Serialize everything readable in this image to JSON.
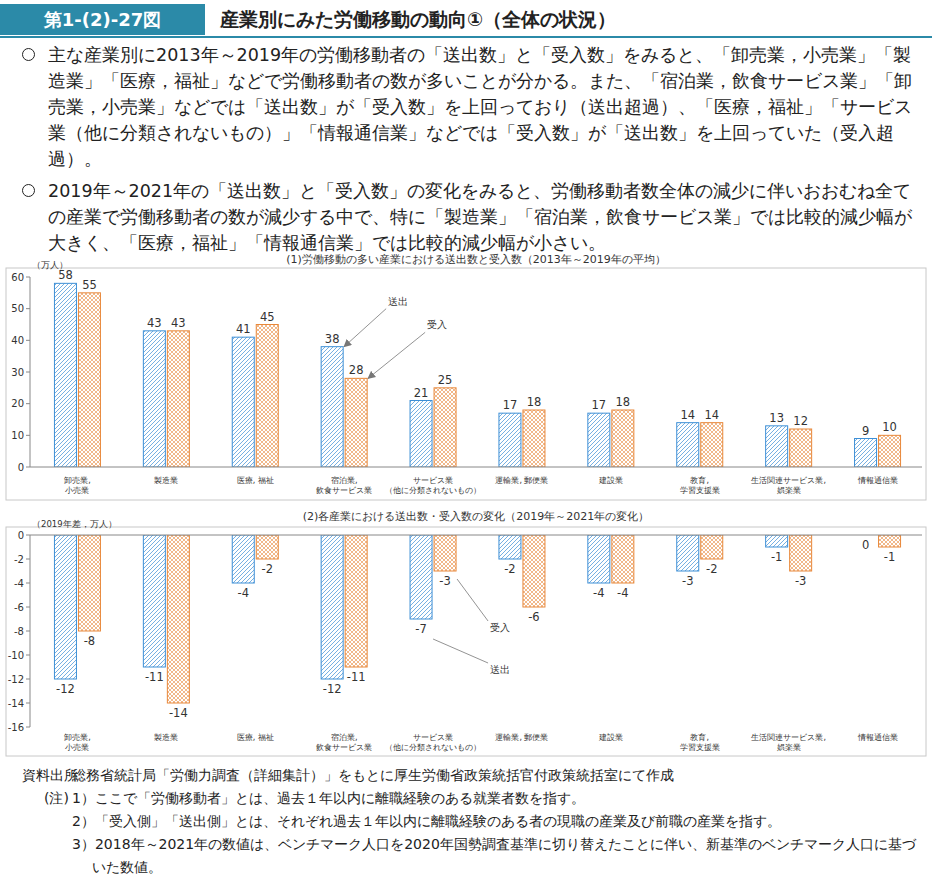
{
  "header": {
    "figure_number": "第1-(2)-27図",
    "title": "産業別にみた労働移動の動向①（全体の状況）"
  },
  "summary": [
    "主な産業別に2013年～2019年の労働移動者の「送出数」と「受入数」をみると、「卸売業，小売業」「製造業」「医療，福祉」などで労働移動者の数が多いことが分かる。また、「宿泊業，飲食サービス業」「卸売業，小売業」などでは「送出数」が「受入数」を上回っており（送出超過）、「医療，福祉」「サービス業（他に分類されないもの）」「情報通信業」などでは「受入数」が「送出数」を上回っていた（受入超過）。",
    "2019年～2021年の「送出数」と「受入数」の変化をみると、労働移動者数全体の減少に伴いおおむね全ての産業で労働移動者の数が減少する中で、特に「製造業」「宿泊業，飲食サービス業」では比較的減少幅が大きく、「医療，福祉」「情報通信業」では比較的減少幅が小さい。"
  ],
  "chart_data": [
    {
      "type": "bar",
      "title": "(1)労働移動の多い産業における送出数と受入数（2013年～2019年の平均）",
      "y_label": "（万人）",
      "categories": [
        "卸売業,\n小売業",
        "製造業",
        "医療, 福祉",
        "宿泊業,\n飲食サービス業",
        "サービス業\n（他に分類されないもの）",
        "運輸業, 郵便業",
        "建設業",
        "教育,\n学習支援業",
        "生活関連サービス業,\n娯楽業",
        "情報通信業"
      ],
      "series": [
        {
          "name": "送出",
          "color": "#3d8fd6",
          "values": [
            58,
            43,
            41,
            38,
            21,
            17,
            17,
            14,
            13,
            9
          ]
        },
        {
          "name": "受入",
          "color": "#e8883a",
          "values": [
            55,
            43,
            45,
            28,
            25,
            18,
            18,
            14,
            12,
            10
          ]
        }
      ],
      "ylim": [
        0,
        60
      ],
      "yticks": [
        0,
        10,
        20,
        30,
        40,
        50,
        60
      ],
      "grid": false,
      "data_labels": true
    },
    {
      "type": "bar",
      "title": "(2)各産業における送出数・受入数の変化（2019年～2021年の変化）",
      "y_label": "（2019年差，万人）",
      "categories": [
        "卸売業,\n小売業",
        "製造業",
        "医療, 福祉",
        "宿泊業,\n飲食サービス業",
        "サービス業\n（他に分類されないもの）",
        "運輸業, 郵便業",
        "建設業",
        "教育,\n学習支援業",
        "生活関連サービス業,\n娯楽業",
        "情報通信業"
      ],
      "series": [
        {
          "name": "送出",
          "color": "#3d8fd6",
          "values": [
            -12,
            -11,
            -4,
            -12,
            -7,
            -2,
            -4,
            -3,
            -1,
            0
          ]
        },
        {
          "name": "受入",
          "color": "#e8883a",
          "values": [
            -8,
            -14,
            -2,
            -11,
            -3,
            -6,
            -4,
            -2,
            -3,
            -1
          ]
        }
      ],
      "ylim": [
        -16,
        0
      ],
      "yticks": [
        0,
        -2,
        -4,
        -6,
        -8,
        -10,
        -12,
        -14,
        -16
      ],
      "grid": false,
      "data_labels": true
    }
  ],
  "source": {
    "label": "資料出所",
    "text": "総務省統計局「労働力調査（詳細集計）」をもとに厚生労働省政策統括官付政策統括室にて作成",
    "notes_label": "(注)",
    "notes": [
      "1）ここで「労働移動者」とは、過去１年以内に離職経験のある就業者数を指す。",
      "2）「受入側」「送出側」とは、それぞれ過去１年以内に離職経験のある者の現職の産業及び前職の産業を指す。",
      "3）2018年～2021年の数値は、ベンチマーク人口を2020年国勢調査基準に切り替えたことに伴い、新基準のベンチマーク人口に基づいた数値。"
    ]
  }
}
